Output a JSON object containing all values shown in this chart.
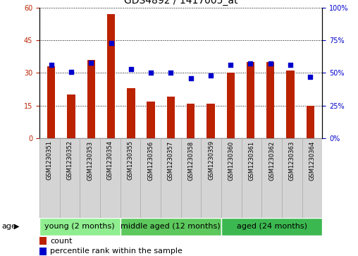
{
  "title": "GDS4892 / 1417005_at",
  "samples": [
    "GSM1230351",
    "GSM1230352",
    "GSM1230353",
    "GSM1230354",
    "GSM1230355",
    "GSM1230356",
    "GSM1230357",
    "GSM1230358",
    "GSM1230359",
    "GSM1230360",
    "GSM1230361",
    "GSM1230362",
    "GSM1230363",
    "GSM1230364"
  ],
  "counts": [
    33,
    20,
    36,
    57,
    23,
    17,
    19,
    16,
    16,
    30,
    35,
    35,
    31,
    15
  ],
  "percentiles": [
    56,
    51,
    58,
    73,
    53,
    50,
    50,
    46,
    48,
    56,
    57,
    57,
    56,
    47
  ],
  "bar_color": "#BB2200",
  "dot_color": "#0000CC",
  "left_ylim": [
    0,
    60
  ],
  "right_ylim": [
    0,
    100
  ],
  "left_yticks": [
    0,
    15,
    30,
    45,
    60
  ],
  "right_yticks": [
    0,
    25,
    50,
    75,
    100
  ],
  "right_yticklabels": [
    "0%",
    "25%",
    "50%",
    "75%",
    "100%"
  ],
  "groups": [
    {
      "label": "young (2 months)",
      "start": 0,
      "end": 4,
      "color": "#90EE90"
    },
    {
      "label": "middle aged (12 months)",
      "start": 4,
      "end": 9,
      "color": "#5DC85D"
    },
    {
      "label": "aged (24 months)",
      "start": 9,
      "end": 14,
      "color": "#3CB850"
    }
  ],
  "group_colors_light": [
    "#C8F0C8",
    "#A8DCA8",
    "#7DC87D"
  ],
  "age_label": "age",
  "legend_count_label": "count",
  "legend_percentile_label": "percentile rank within the sample",
  "grid_color": "black",
  "background_color": "#FFFFFF",
  "plot_bg_color": "#FFFFFF",
  "ticklabel_bg": "#D4D4D4",
  "ticklabel_border": "#AAAAAA",
  "bar_width": 0.4,
  "dot_size": 18,
  "title_fontsize": 10,
  "tick_fontsize": 7,
  "sample_fontsize": 6,
  "group_fontsize": 8,
  "legend_fontsize": 8
}
